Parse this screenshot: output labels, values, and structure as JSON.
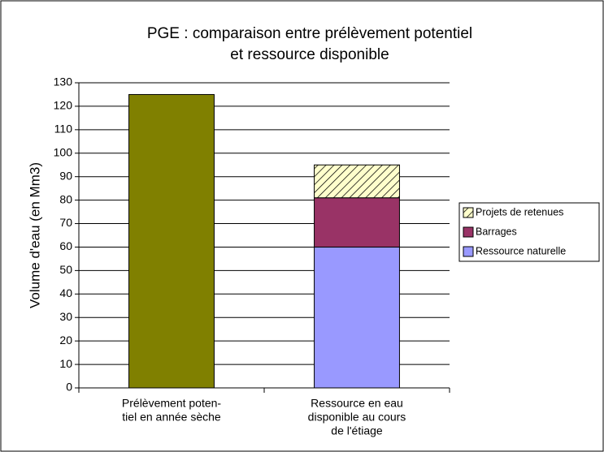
{
  "chart_data": {
    "type": "stacked_bar",
    "title": [
      "PGE : comparaison entre prélèvement potentiel",
      "et ressource disponible"
    ],
    "y_label": "Volume d'eau (en Mm3)",
    "categories": [
      [
        "Prélèvement poten-",
        "tiel en année sèche"
      ],
      [
        "Ressource en eau",
        "disponible au cours",
        "de  l'étiage"
      ]
    ],
    "series": [
      {
        "color": "#808000",
        "values": [
          125,
          null
        ]
      },
      {
        "name": "Ressource naturelle",
        "color": "#9999ff",
        "values": [
          null,
          60
        ]
      },
      {
        "name": "Barrages",
        "color": "#993366",
        "values": [
          null,
          21
        ]
      },
      {
        "name": "Projets de retenues",
        "color": "#ffffcc",
        "hatch": true,
        "values": [
          null,
          14
        ]
      }
    ],
    "ylim": [
      0,
      130
    ],
    "yticks": [
      0,
      10,
      20,
      30,
      40,
      50,
      60,
      70,
      80,
      90,
      100,
      110,
      120,
      130
    ],
    "grid": true,
    "legend": "right"
  }
}
